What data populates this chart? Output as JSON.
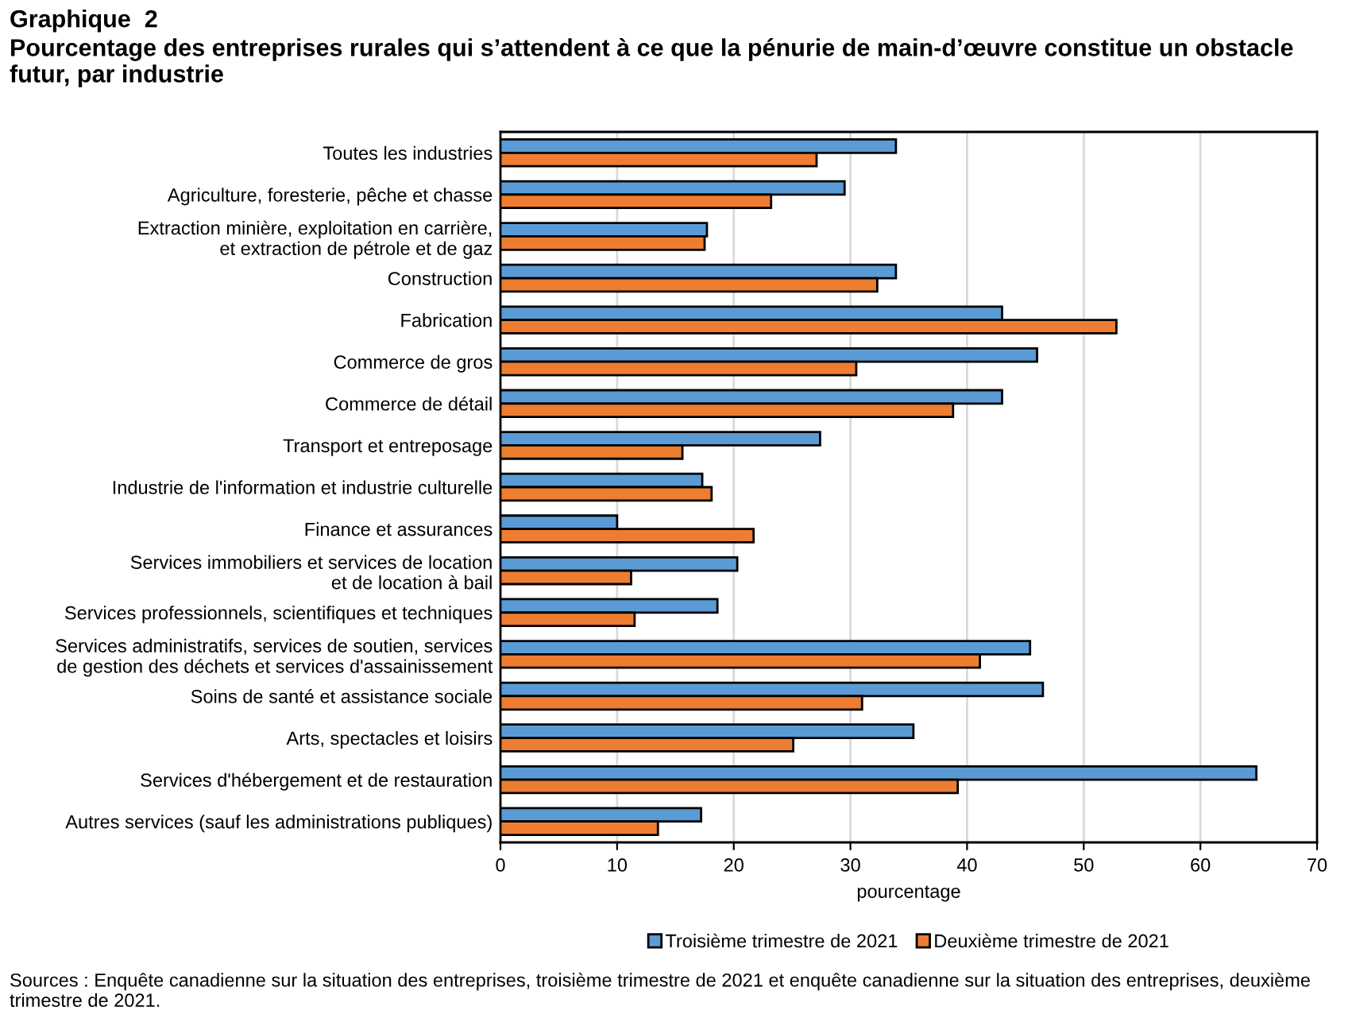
{
  "chart_data": {
    "type": "bar",
    "orientation": "horizontal",
    "title": "Graphique  2",
    "subtitle": "Pourcentage des entreprises rurales qui s’attendent à ce que la pénurie de main-d’œuvre constitue un obstacle futur, par industrie",
    "xlabel": "pourcentage",
    "categories": [
      "Toutes les industries",
      "Agriculture, foresterie, pêche et chasse",
      "Extraction minière, exploitation en carrière,\net extraction de pétrole et de gaz",
      "Construction",
      "Fabrication",
      "Commerce de gros",
      "Commerce de détail",
      "Transport et entreposage",
      "Industrie de l'information et industrie culturelle",
      "Finance et assurances",
      "Services immobiliers et services de location\net de location à bail",
      "Services professionnels, scientifiques et techniques",
      "Services administratifs, services de soutien, services\nde gestion des déchets et services d'assainissement",
      "Soins de santé et assistance sociale",
      "Arts, spectacles et loisirs",
      "Services d'hébergement et de restauration",
      "Autres services (sauf les administrations publiques)"
    ],
    "series": [
      {
        "name": "Troisième trimestre de 2021",
        "color": "#5b9bd5",
        "values": [
          33.9,
          29.5,
          17.7,
          33.9,
          43.0,
          46.0,
          43.0,
          27.4,
          17.3,
          10.0,
          20.3,
          18.6,
          45.4,
          46.5,
          35.4,
          64.8,
          17.2
        ]
      },
      {
        "name": "Deuxième trimestre de 2021",
        "color": "#ed7d31",
        "values": [
          27.1,
          23.2,
          17.5,
          32.3,
          52.8,
          30.5,
          38.8,
          15.6,
          18.1,
          21.7,
          11.2,
          11.5,
          41.1,
          31.0,
          25.1,
          39.2,
          13.5
        ]
      }
    ],
    "xlim": [
      0,
      70
    ],
    "xticks": [
      0,
      10,
      20,
      30,
      40,
      50,
      60,
      70
    ],
    "grid": "x",
    "legend": "bottom",
    "annotations": [
      "Sources : Enquête canadienne sur la situation des entreprises, troisième trimestre de 2021 et enquête canadienne sur la situation des entreprises, deuxième trimestre de 2021."
    ]
  }
}
